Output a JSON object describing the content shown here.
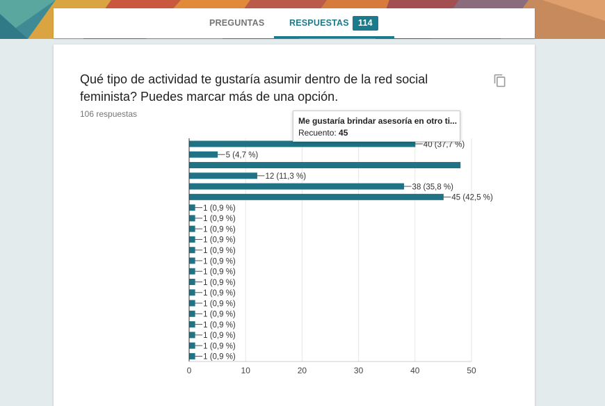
{
  "tabs": {
    "questions_label": "PREGUNTAS",
    "answers_label": "RESPUESTAS",
    "answers_count": "114"
  },
  "question": {
    "title": "Qué tipo de actividad te gustaría asumir dentro de la red social feminista? Puedes marcar más de una opción.",
    "responses": "106 respuestas",
    "copy_icon": "copy-icon"
  },
  "tooltip": {
    "option": "Me gustaría brindar asesoría en otro ti...",
    "count_label": "Recuento:",
    "count_value": "45"
  },
  "colors": {
    "accent": "#1b7b8d",
    "bar": "#1f7385"
  },
  "chart_data": {
    "type": "bar",
    "orientation": "horizontal",
    "xlim": [
      0,
      50
    ],
    "x_ticks": [
      0,
      10,
      20,
      30,
      40,
      50
    ],
    "grid": true,
    "values": [
      40,
      5,
      48,
      12,
      38,
      45,
      1,
      1,
      1,
      1,
      1,
      1,
      1,
      1,
      1,
      1,
      1,
      1,
      1,
      1,
      1
    ],
    "labels": [
      "40 (37,7 %)",
      "5 (4,7 %)",
      "",
      "12 (11,3 %)",
      "38 (35,8 %)",
      "45 (42,5 %)",
      "1 (0,9 %)",
      "1 (0,9 %)",
      "1 (0,9 %)",
      "1 (0,9 %)",
      "1 (0,9 %)",
      "1 (0,9 %)",
      "1 (0,9 %)",
      "1 (0,9 %)",
      "1 (0,9 %)",
      "1 (0,9 %)",
      "1 (0,9 %)",
      "1 (0,9 %)",
      "1 (0,9 %)",
      "1 (0,9 %)",
      "1 (0,9 %)"
    ]
  }
}
